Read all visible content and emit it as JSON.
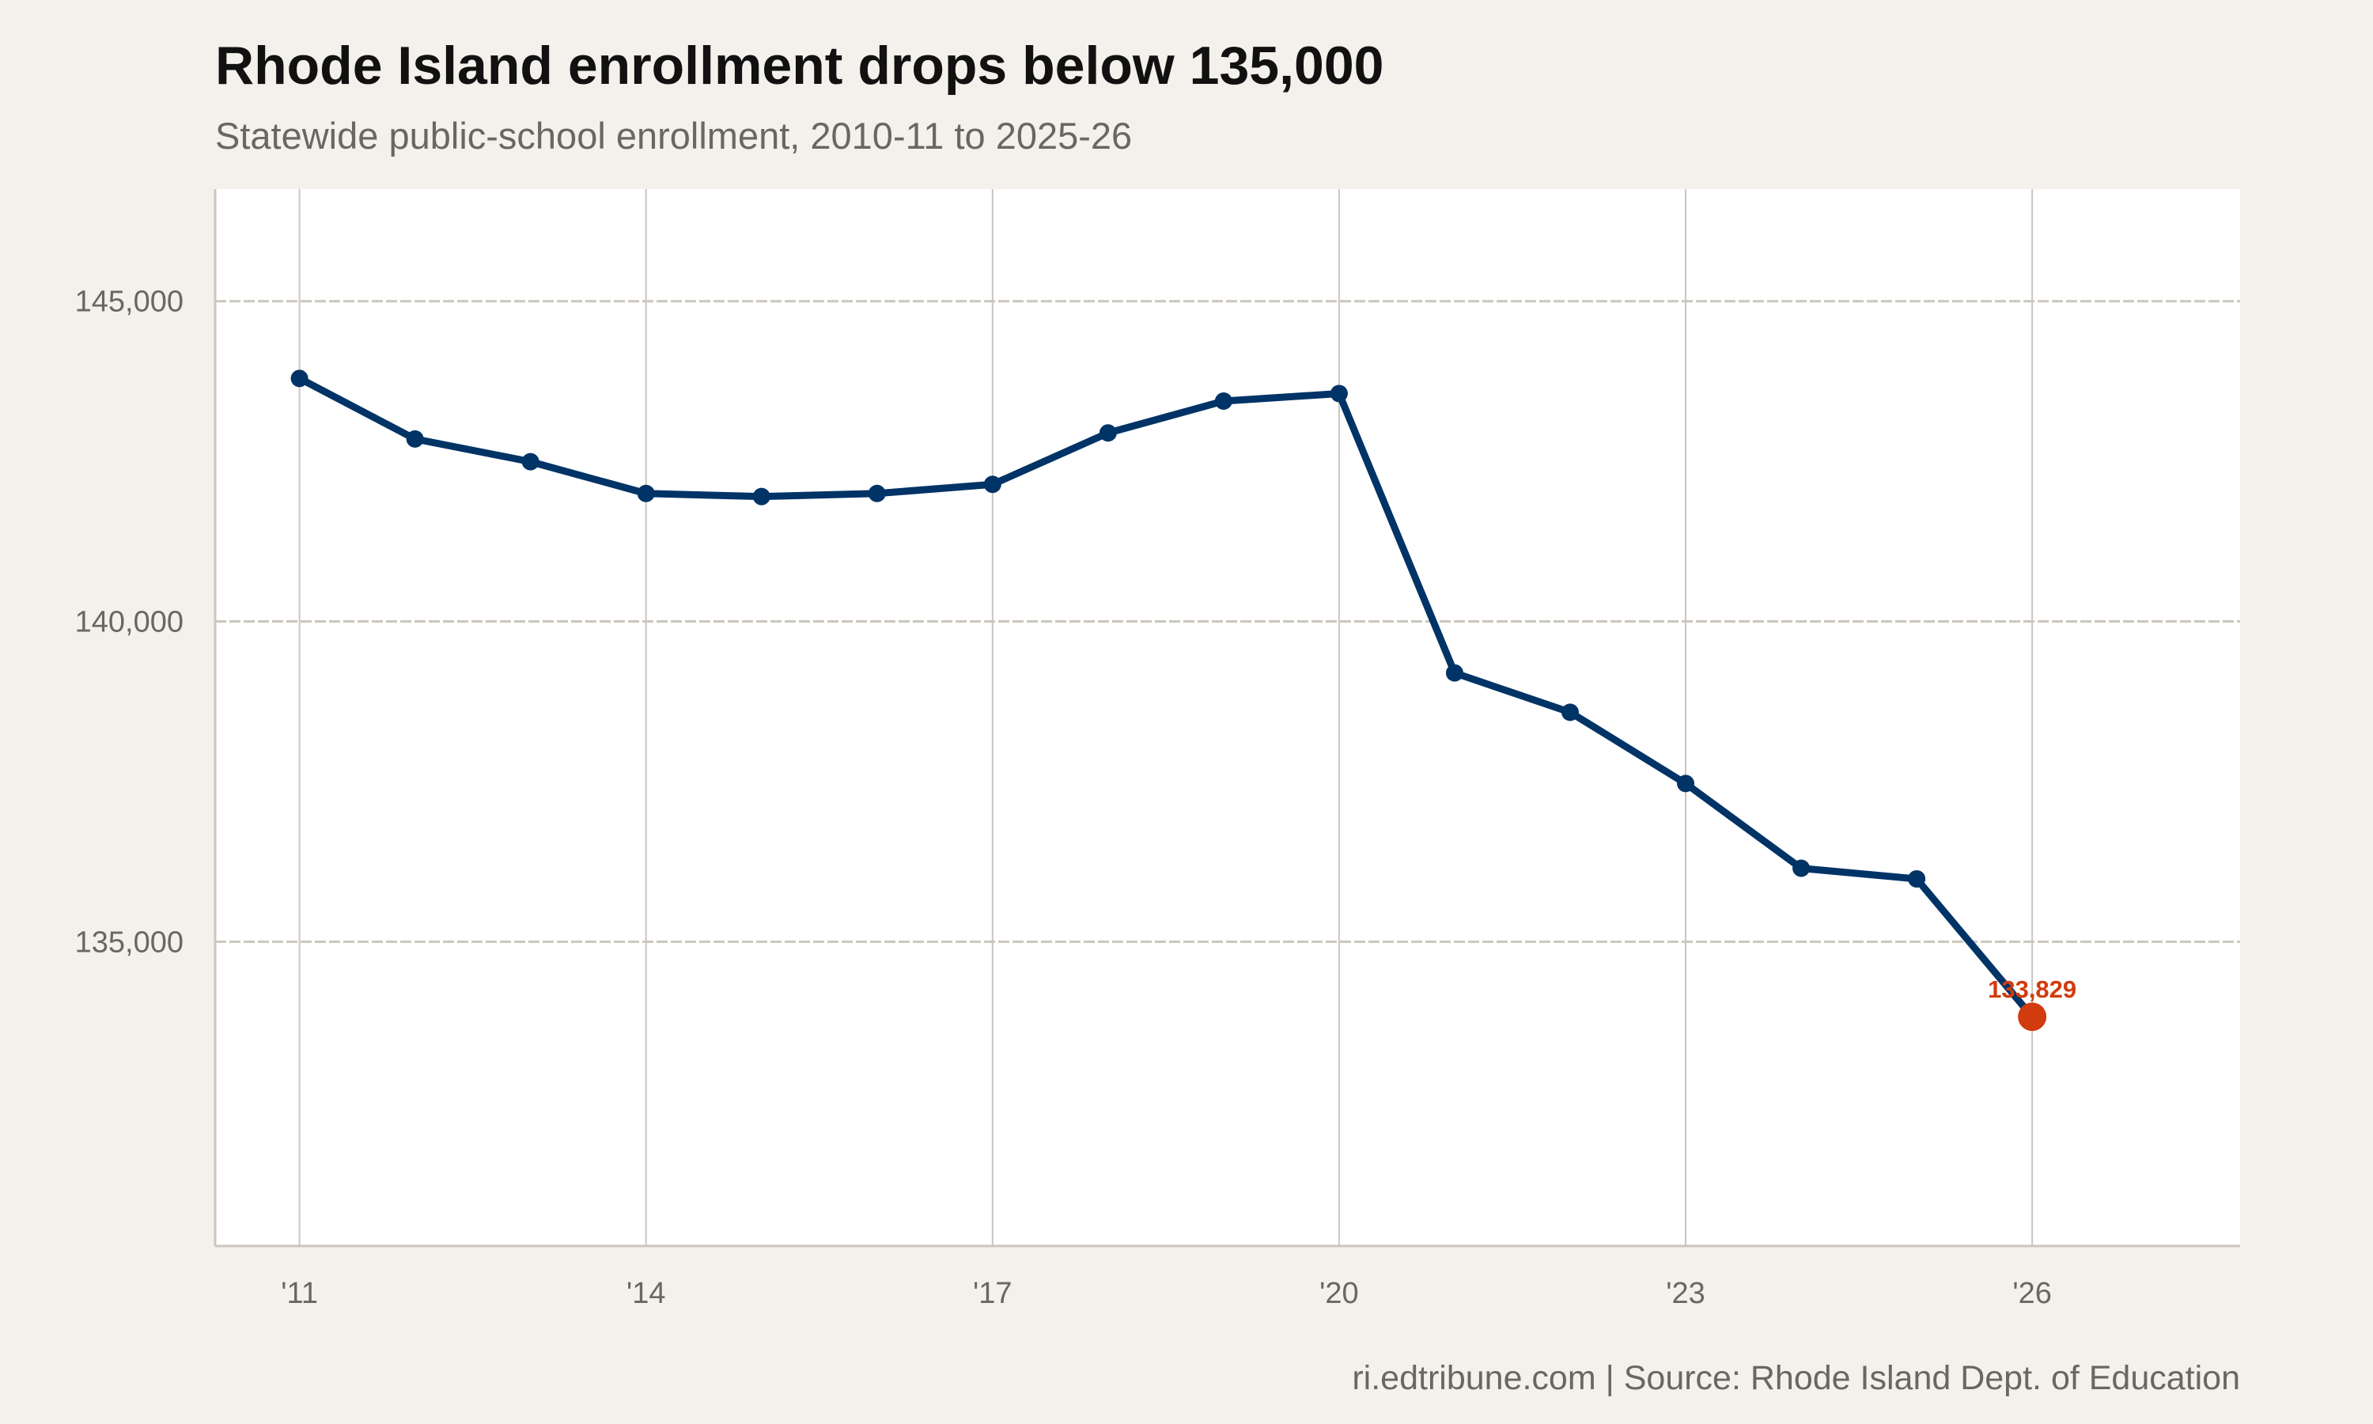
{
  "title": "Rhode Island enrollment drops below 135,000",
  "subtitle": "Statewide public-school enrollment, 2010-11 to 2025-26",
  "caption": "ri.edtribune.com | Source: Rhode Island Dept. of Education",
  "chart_data": {
    "type": "line",
    "title": "Rhode Island enrollment drops below 135,000",
    "subtitle": "Statewide public-school enrollment, 2010-11 to 2025-26",
    "xlabel": "",
    "ylabel": "",
    "x": [
      2011,
      2012,
      2013,
      2014,
      2015,
      2016,
      2017,
      2018,
      2019,
      2020,
      2021,
      2022,
      2023,
      2024,
      2025,
      2026
    ],
    "series": [
      {
        "values": [
          143794,
          142849,
          142494,
          141998,
          141950,
          141998,
          142140,
          142943,
          143440,
          143558,
          139196,
          138582,
          137470,
          136147,
          135981,
          133829
        ]
      }
    ],
    "xlim": [
      2010.27,
      2027.8
    ],
    "ylim": [
      130250,
      146750
    ],
    "x_ticks": [
      2011,
      2014,
      2017,
      2020,
      2023,
      2026
    ],
    "x_tick_labels": [
      "'11",
      "'14",
      "'17",
      "'20",
      "'23",
      "'26"
    ],
    "y_ticks": [
      135000,
      140000,
      145000
    ],
    "y_tick_labels": [
      "135,000",
      "140,000",
      "145,000"
    ],
    "grid": true,
    "highlight": {
      "x": 2026,
      "value": 133829,
      "label": "133,829"
    },
    "colors": {
      "line": "#003366",
      "highlight": "#d13b0e",
      "grid": "#cbc6bd",
      "background": "#f4f1ec",
      "plot_background": "#ffffff"
    }
  }
}
